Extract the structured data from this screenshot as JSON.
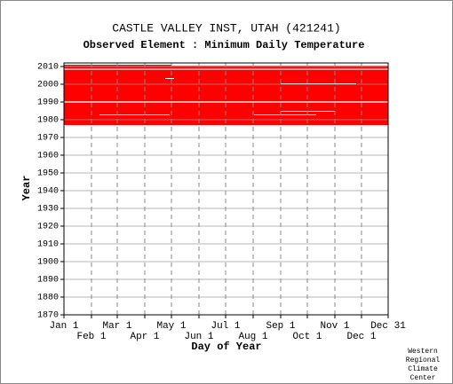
{
  "chart_data": {
    "type": "availability",
    "title": "CASTLE VALLEY INST, UTAH   (421241)",
    "subtitle": "Observed Element : Minimum Daily Temperature",
    "xlabel": "Day of Year",
    "ylabel": "Year",
    "credit": [
      "Western",
      "Regional",
      "Climate",
      "Center"
    ],
    "color": "#ff0000",
    "xlim": [
      1,
      366
    ],
    "ylim": [
      1870,
      2012
    ],
    "xticks": [
      {
        "value": 1,
        "label": "Jan 1"
      },
      {
        "value": 32,
        "label": "Feb 1"
      },
      {
        "value": 61,
        "label": "Mar 1"
      },
      {
        "value": 92,
        "label": "Apr 1"
      },
      {
        "value": 122,
        "label": "May 1"
      },
      {
        "value": 153,
        "label": "Jun 1"
      },
      {
        "value": 183,
        "label": "Jul 1"
      },
      {
        "value": 214,
        "label": "Aug 1"
      },
      {
        "value": 245,
        "label": "Sep 1"
      },
      {
        "value": 275,
        "label": "Oct 1"
      },
      {
        "value": 306,
        "label": "Nov 1"
      },
      {
        "value": 336,
        "label": "Dec 1"
      },
      {
        "value": 366,
        "label": "Dec 31"
      }
    ],
    "yticks": [
      1870,
      1880,
      1890,
      1900,
      1910,
      1920,
      1930,
      1940,
      1950,
      1960,
      1970,
      1980,
      1990,
      2000,
      2010
    ],
    "present": [
      {
        "years": [
          1977,
          1989.6
        ],
        "days": [
          1,
          366
        ]
      },
      {
        "years": [
          1990.4,
          2008.2
        ],
        "days": [
          1,
          366
        ]
      },
      {
        "years": [
          2008.8,
          2010.4
        ],
        "days": [
          1,
          366
        ]
      },
      {
        "years": [
          2010.4,
          2011
        ],
        "days": [
          1,
          122
        ]
      }
    ],
    "missing": [
      {
        "years": [
          1982.5,
          1983
        ],
        "days": [
          41,
          120
        ]
      },
      {
        "years": [
          1982.5,
          1983
        ],
        "days": [
          215,
          285
        ]
      },
      {
        "years": [
          1984.5,
          1985
        ],
        "days": [
          245,
          306
        ]
      },
      {
        "years": [
          2000,
          2000.5
        ],
        "days": [
          245,
          330
        ]
      },
      {
        "years": [
          2003,
          2003.5
        ],
        "days": [
          115,
          125
        ]
      }
    ],
    "grid": true
  }
}
